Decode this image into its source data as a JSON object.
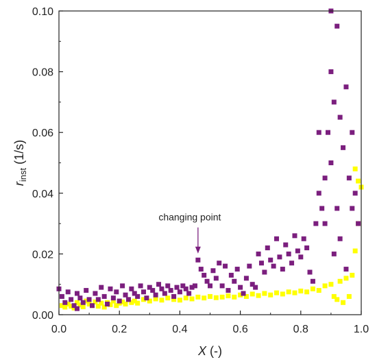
{
  "chart_data": {
    "type": "scatter",
    "xlabel": {
      "main": "X",
      "unit": " (-)"
    },
    "ylabel": {
      "main": "r",
      "sub": "inst",
      "unit": " (1/s)"
    },
    "xlim": [
      0,
      1
    ],
    "ylim": [
      0,
      0.1
    ],
    "xticks": [
      {
        "v": 0.0,
        "label": "0.0"
      },
      {
        "v": 0.2,
        "label": "0.2"
      },
      {
        "v": 0.4,
        "label": "0.4"
      },
      {
        "v": 0.6,
        "label": "0.6"
      },
      {
        "v": 0.8,
        "label": "0.8"
      },
      {
        "v": 1.0,
        "label": "1.0"
      }
    ],
    "yticks": [
      {
        "v": 0.0,
        "label": "0.00"
      },
      {
        "v": 0.02,
        "label": "0.02"
      },
      {
        "v": 0.04,
        "label": "0.04"
      },
      {
        "v": 0.06,
        "label": "0.06"
      },
      {
        "v": 0.08,
        "label": "0.08"
      },
      {
        "v": 0.1,
        "label": "0.10"
      }
    ],
    "grid": false,
    "annotations": [
      {
        "text": "changing point",
        "x": 0.46,
        "y": 0.0197
      }
    ],
    "series": [
      {
        "color": "#ffff00",
        "points": [
          [
            0.01,
            0.003
          ],
          [
            0.02,
            0.0025
          ],
          [
            0.03,
            0.0035
          ],
          [
            0.04,
            0.0028
          ],
          [
            0.05,
            0.0022
          ],
          [
            0.06,
            0.004
          ],
          [
            0.07,
            0.0032
          ],
          [
            0.08,
            0.0026
          ],
          [
            0.09,
            0.0045
          ],
          [
            0.1,
            0.0035
          ],
          [
            0.11,
            0.003
          ],
          [
            0.12,
            0.0042
          ],
          [
            0.13,
            0.0028
          ],
          [
            0.14,
            0.0038
          ],
          [
            0.15,
            0.0025
          ],
          [
            0.16,
            0.004
          ],
          [
            0.17,
            0.0033
          ],
          [
            0.18,
            0.0045
          ],
          [
            0.19,
            0.003
          ],
          [
            0.2,
            0.0038
          ],
          [
            0.21,
            0.0042
          ],
          [
            0.22,
            0.0035
          ],
          [
            0.23,
            0.005
          ],
          [
            0.24,
            0.004
          ],
          [
            0.25,
            0.0045
          ],
          [
            0.26,
            0.0038
          ],
          [
            0.28,
            0.005
          ],
          [
            0.3,
            0.0045
          ],
          [
            0.32,
            0.0052
          ],
          [
            0.34,
            0.0048
          ],
          [
            0.36,
            0.0055
          ],
          [
            0.38,
            0.005
          ],
          [
            0.4,
            0.0048
          ],
          [
            0.42,
            0.0055
          ],
          [
            0.44,
            0.0052
          ],
          [
            0.46,
            0.0058
          ],
          [
            0.48,
            0.0055
          ],
          [
            0.5,
            0.006
          ],
          [
            0.52,
            0.0056
          ],
          [
            0.54,
            0.0058
          ],
          [
            0.56,
            0.0062
          ],
          [
            0.58,
            0.0058
          ],
          [
            0.6,
            0.0065
          ],
          [
            0.62,
            0.006
          ],
          [
            0.64,
            0.0068
          ],
          [
            0.66,
            0.0063
          ],
          [
            0.68,
            0.007
          ],
          [
            0.7,
            0.0065
          ],
          [
            0.72,
            0.0072
          ],
          [
            0.74,
            0.0068
          ],
          [
            0.76,
            0.0075
          ],
          [
            0.78,
            0.0072
          ],
          [
            0.8,
            0.0078
          ],
          [
            0.82,
            0.0075
          ],
          [
            0.84,
            0.0085
          ],
          [
            0.86,
            0.008
          ],
          [
            0.88,
            0.0095
          ],
          [
            0.9,
            0.01
          ],
          [
            0.91,
            0.006
          ],
          [
            0.92,
            0.005
          ],
          [
            0.93,
            0.011
          ],
          [
            0.94,
            0.004
          ],
          [
            0.95,
            0.012
          ],
          [
            0.96,
            0.006
          ],
          [
            0.97,
            0.013
          ],
          [
            0.98,
            0.048
          ],
          [
            0.98,
            0.021
          ],
          [
            0.99,
            0.044
          ],
          [
            0.99,
            0.03
          ],
          [
            1.0,
            0.042
          ]
        ]
      },
      {
        "color": "#7b1f7e",
        "points": [
          [
            0.0,
            0.0085
          ],
          [
            0.01,
            0.006
          ],
          [
            0.02,
            0.004
          ],
          [
            0.03,
            0.0075
          ],
          [
            0.04,
            0.005
          ],
          [
            0.05,
            0.003
          ],
          [
            0.06,
            0.007
          ],
          [
            0.06,
            0.002
          ],
          [
            0.07,
            0.0055
          ],
          [
            0.08,
            0.004
          ],
          [
            0.09,
            0.008
          ],
          [
            0.1,
            0.005
          ],
          [
            0.11,
            0.003
          ],
          [
            0.12,
            0.007
          ],
          [
            0.13,
            0.005
          ],
          [
            0.14,
            0.009
          ],
          [
            0.15,
            0.006
          ],
          [
            0.16,
            0.0035
          ],
          [
            0.17,
            0.0085
          ],
          [
            0.18,
            0.0055
          ],
          [
            0.19,
            0.0075
          ],
          [
            0.2,
            0.0045
          ],
          [
            0.21,
            0.0095
          ],
          [
            0.22,
            0.0065
          ],
          [
            0.23,
            0.005
          ],
          [
            0.24,
            0.0085
          ],
          [
            0.25,
            0.007
          ],
          [
            0.26,
            0.006
          ],
          [
            0.27,
            0.0095
          ],
          [
            0.28,
            0.0075
          ],
          [
            0.29,
            0.0055
          ],
          [
            0.3,
            0.009
          ],
          [
            0.31,
            0.008
          ],
          [
            0.32,
            0.0065
          ],
          [
            0.33,
            0.01
          ],
          [
            0.34,
            0.0085
          ],
          [
            0.35,
            0.007
          ],
          [
            0.36,
            0.0095
          ],
          [
            0.37,
            0.008
          ],
          [
            0.38,
            0.006
          ],
          [
            0.39,
            0.009
          ],
          [
            0.4,
            0.0075
          ],
          [
            0.41,
            0.0095
          ],
          [
            0.42,
            0.0085
          ],
          [
            0.43,
            0.007
          ],
          [
            0.44,
            0.009
          ],
          [
            0.45,
            0.0095
          ],
          [
            0.46,
            0.018
          ],
          [
            0.47,
            0.015
          ],
          [
            0.48,
            0.013
          ],
          [
            0.49,
            0.011
          ],
          [
            0.5,
            0.0095
          ],
          [
            0.51,
            0.0145
          ],
          [
            0.52,
            0.012
          ],
          [
            0.53,
            0.017
          ],
          [
            0.54,
            0.0095
          ],
          [
            0.55,
            0.016
          ],
          [
            0.56,
            0.008
          ],
          [
            0.57,
            0.013
          ],
          [
            0.58,
            0.011
          ],
          [
            0.59,
            0.015
          ],
          [
            0.6,
            0.009
          ],
          [
            0.61,
            0.007
          ],
          [
            0.62,
            0.012
          ],
          [
            0.63,
            0.016
          ],
          [
            0.64,
            0.01
          ],
          [
            0.65,
            0.009
          ],
          [
            0.66,
            0.02
          ],
          [
            0.67,
            0.017
          ],
          [
            0.68,
            0.014
          ],
          [
            0.69,
            0.022
          ],
          [
            0.7,
            0.018
          ],
          [
            0.71,
            0.016
          ],
          [
            0.72,
            0.025
          ],
          [
            0.73,
            0.019
          ],
          [
            0.74,
            0.015
          ],
          [
            0.75,
            0.023
          ],
          [
            0.76,
            0.02
          ],
          [
            0.77,
            0.017
          ],
          [
            0.78,
            0.026
          ],
          [
            0.79,
            0.021
          ],
          [
            0.8,
            0.019
          ],
          [
            0.81,
            0.025
          ],
          [
            0.82,
            0.022
          ],
          [
            0.83,
            0.014
          ],
          [
            0.84,
            0.011
          ],
          [
            0.85,
            0.03
          ],
          [
            0.86,
            0.04
          ],
          [
            0.87,
            0.035
          ],
          [
            0.88,
            0.045
          ],
          [
            0.89,
            0.06
          ],
          [
            0.9,
            0.08
          ],
          [
            0.9,
            0.05
          ],
          [
            0.91,
            0.07
          ],
          [
            0.92,
            0.095
          ],
          [
            0.92,
            0.035
          ],
          [
            0.93,
            0.065
          ],
          [
            0.94,
            0.055
          ],
          [
            0.95,
            0.075
          ],
          [
            0.96,
            0.045
          ],
          [
            0.97,
            0.06
          ],
          [
            0.98,
            0.04
          ],
          [
            0.9,
            0.1
          ],
          [
            0.86,
            0.06
          ],
          [
            0.88,
            0.03
          ],
          [
            0.91,
            0.02
          ],
          [
            0.93,
            0.025
          ],
          [
            0.95,
            0.015
          ],
          [
            0.97,
            0.035
          ],
          [
            0.99,
            0.03
          ]
        ]
      }
    ]
  }
}
